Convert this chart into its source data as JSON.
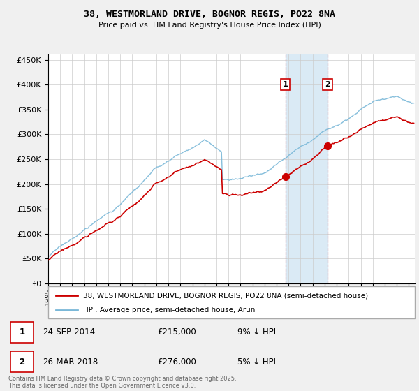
{
  "title": "38, WESTMORLAND DRIVE, BOGNOR REGIS, PO22 8NA",
  "subtitle": "Price paid vs. HM Land Registry's House Price Index (HPI)",
  "ylim": [
    0,
    460000
  ],
  "yticks": [
    0,
    50000,
    100000,
    150000,
    200000,
    250000,
    300000,
    350000,
    400000,
    450000
  ],
  "xlim_start": 1995.0,
  "xlim_end": 2025.5,
  "sale1_date": 2014.73,
  "sale1_price": 215000,
  "sale1_label": "1",
  "sale2_date": 2018.23,
  "sale2_price": 276000,
  "sale2_label": "2",
  "hpi_color": "#7ab8d8",
  "price_color": "#cc0000",
  "shade_color": "#daeaf5",
  "legend_label_red": "38, WESTMORLAND DRIVE, BOGNOR REGIS, PO22 8NA (semi-detached house)",
  "legend_label_blue": "HPI: Average price, semi-detached house, Arun",
  "table_row1": [
    "1",
    "24-SEP-2014",
    "£215,000",
    "9% ↓ HPI"
  ],
  "table_row2": [
    "2",
    "26-MAR-2018",
    "£276,000",
    "5% ↓ HPI"
  ],
  "footnote": "Contains HM Land Registry data © Crown copyright and database right 2025.\nThis data is licensed under the Open Government Licence v3.0.",
  "background_color": "#f0f0f0",
  "plot_bg_color": "#ffffff"
}
